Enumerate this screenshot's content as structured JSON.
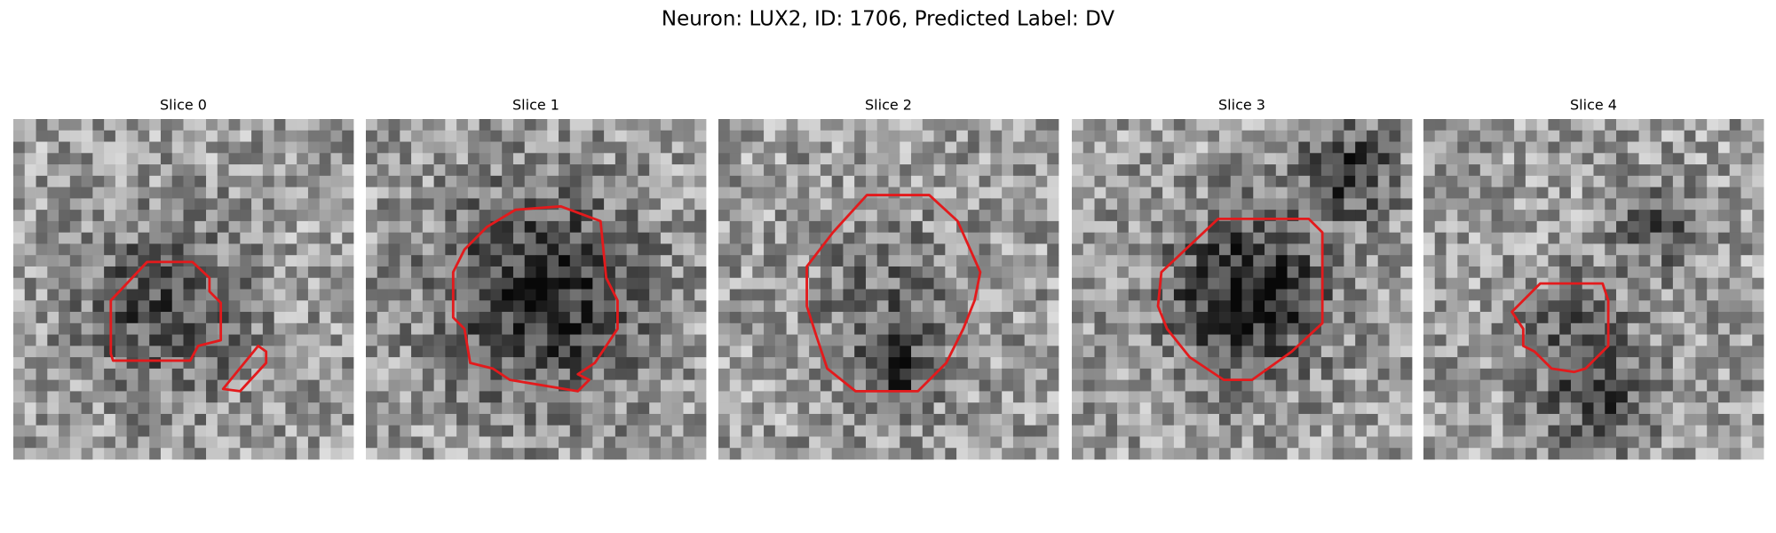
{
  "header": {
    "title": "Neuron: LUX2, ID: 1706, Predicted Label: DV"
  },
  "panels": [
    {
      "title": "Slice 0"
    },
    {
      "title": "Slice 1"
    },
    {
      "title": "Slice 2"
    },
    {
      "title": "Slice 3"
    },
    {
      "title": "Slice 4"
    }
  ]
}
